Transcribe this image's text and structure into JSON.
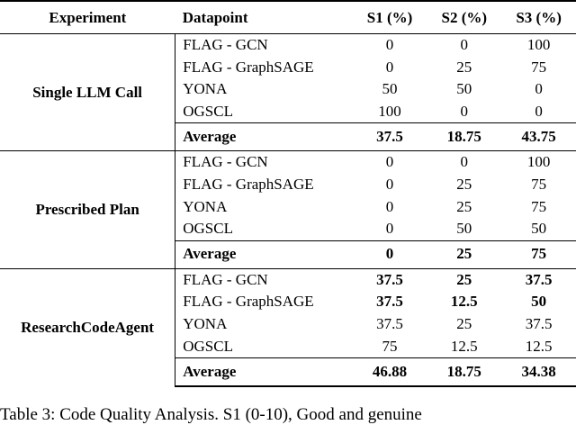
{
  "header": {
    "experiment": "Experiment",
    "datapoint": "Datapoint",
    "s1": "S1 (%)",
    "s2": "S2 (%)",
    "s3": "S3 (%)"
  },
  "groups": [
    {
      "name": "Single LLM Call",
      "rows": [
        {
          "dp": "FLAG - GCN",
          "s1": "0",
          "s2": "0",
          "s3": "100"
        },
        {
          "dp": "FLAG - GraphSAGE",
          "s1": "0",
          "s2": "25",
          "s3": "75"
        },
        {
          "dp": "YONA",
          "s1": "50",
          "s2": "50",
          "s3": "0"
        },
        {
          "dp": "OGSCL",
          "s1": "100",
          "s2": "0",
          "s3": "0"
        }
      ],
      "average": {
        "label": "Average",
        "s1": "37.5",
        "s2": "18.75",
        "s3": "43.75"
      }
    },
    {
      "name": "Prescribed Plan",
      "rows": [
        {
          "dp": "FLAG - GCN",
          "s1": "0",
          "s2": "0",
          "s3": "100"
        },
        {
          "dp": "FLAG - GraphSAGE",
          "s1": "0",
          "s2": "25",
          "s3": "75"
        },
        {
          "dp": "YONA",
          "s1": "0",
          "s2": "25",
          "s3": "75"
        },
        {
          "dp": "OGSCL",
          "s1": "0",
          "s2": "50",
          "s3": "50"
        }
      ],
      "average": {
        "label": "Average",
        "s1": "0",
        "s2": "25",
        "s3": "75"
      }
    },
    {
      "name": "ResearchCodeAgent",
      "rows": [
        {
          "dp": "FLAG - GCN",
          "s1": "37.5",
          "s2": "25",
          "s3": "37.5"
        },
        {
          "dp": "FLAG - GraphSAGE",
          "s1": "37.5",
          "s2": "12.5",
          "s3": "50"
        },
        {
          "dp": "YONA",
          "s1": "37.5",
          "s2": "25",
          "s3": "37.5"
        },
        {
          "dp": "OGSCL",
          "s1": "75",
          "s2": "12.5",
          "s3": "12.5"
        }
      ],
      "average": {
        "label": "Average",
        "s1": "46.88",
        "s2": "18.75",
        "s3": "34.38"
      }
    }
  ],
  "caption": "Table 3: Code Quality Analysis. S1 (0-10), Good and genuine"
}
